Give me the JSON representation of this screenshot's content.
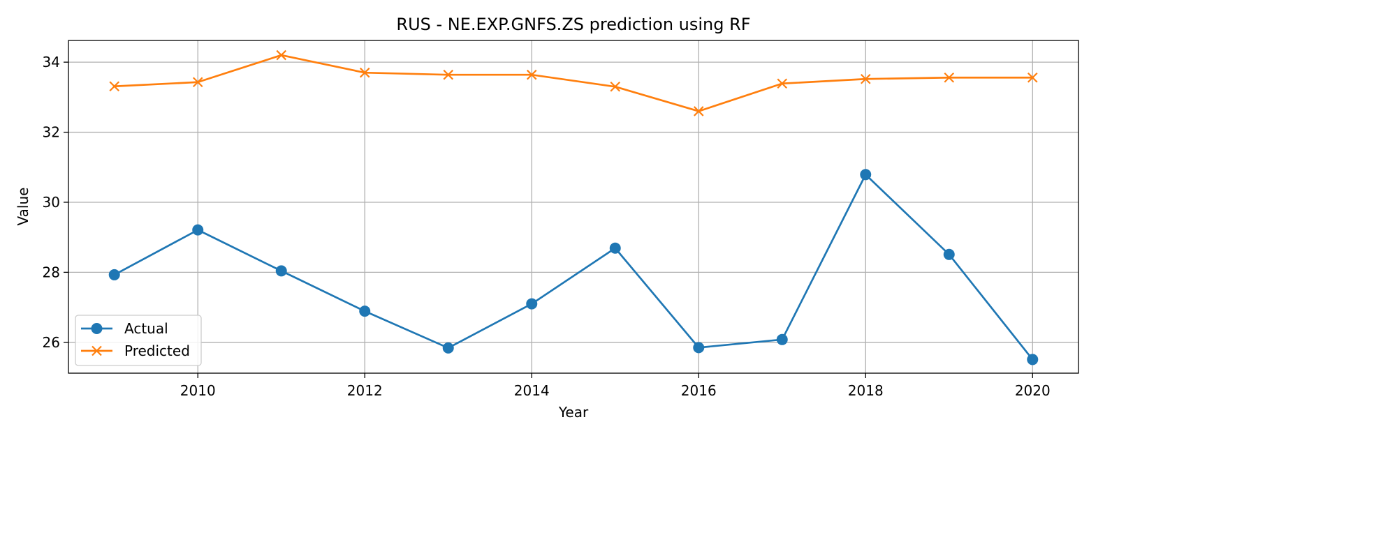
{
  "chart_data": {
    "type": "line",
    "title": "RUS - NE.EXP.GNFS.ZS prediction using RF",
    "xlabel": "Year",
    "ylabel": "Value",
    "x": [
      2009,
      2010,
      2011,
      2012,
      2013,
      2014,
      2015,
      2016,
      2017,
      2018,
      2019,
      2020
    ],
    "xlim": [
      2008.45,
      2020.55
    ],
    "ylim": [
      25.12,
      34.62
    ],
    "xticks": [
      2010,
      2012,
      2014,
      2016,
      2018,
      2020
    ],
    "yticks": [
      26,
      28,
      30,
      32,
      34
    ],
    "grid": true,
    "legend_position": "lower-left",
    "series": [
      {
        "name": "Actual",
        "color": "#1f77b4",
        "marker": "circle",
        "values": [
          27.93,
          29.21,
          28.04,
          26.89,
          25.84,
          27.1,
          28.69,
          25.85,
          26.08,
          30.79,
          28.51,
          25.51
        ]
      },
      {
        "name": "Predicted",
        "color": "#ff7f0e",
        "marker": "x",
        "values": [
          33.31,
          33.43,
          34.2,
          33.7,
          33.64,
          33.64,
          33.3,
          32.6,
          33.39,
          33.52,
          33.56,
          33.56
        ]
      }
    ]
  }
}
